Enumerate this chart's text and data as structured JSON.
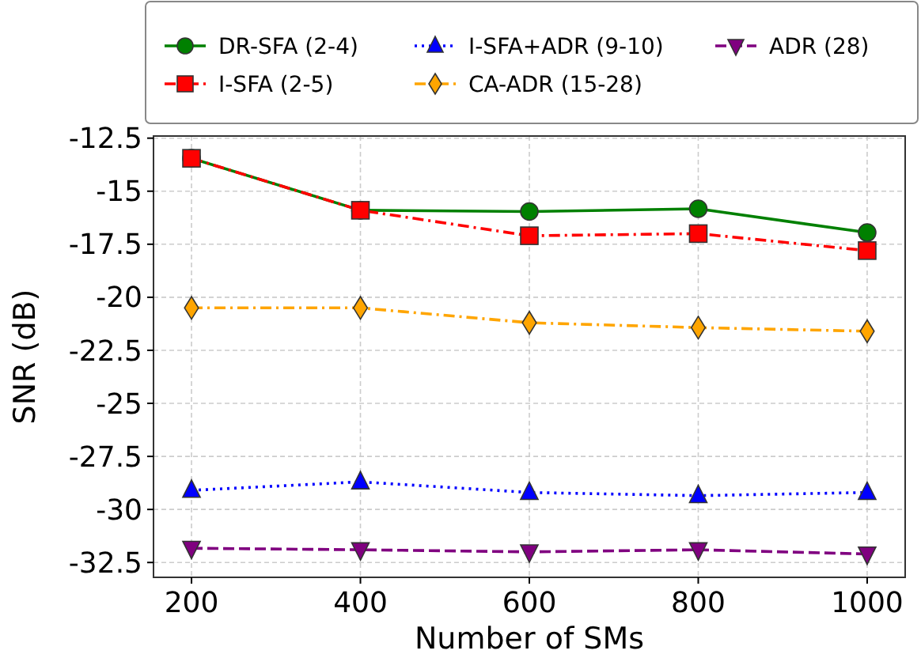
{
  "chart_data": {
    "type": "line",
    "xlabel": "Number of SMs",
    "ylabel": "SNR (dB)",
    "x": [
      200,
      400,
      600,
      800,
      1000
    ],
    "xlim": [
      155,
      1045
    ],
    "xticks": [
      200,
      400,
      600,
      800,
      1000
    ],
    "ylim": [
      -33.2,
      -12.4
    ],
    "yticks": [
      -12.5,
      -15,
      -17.5,
      -20,
      -22.5,
      -25,
      -27.5,
      -30,
      -32.5
    ],
    "grid": true,
    "legend": "top",
    "series": [
      {
        "name": "DR-SFA (2-4)",
        "color": "#008000",
        "marker": "circle",
        "line_style": "solid",
        "values": [
          -13.45,
          -15.9,
          -15.96,
          -15.83,
          -16.95
        ]
      },
      {
        "name": "I-SFA (2-5)",
        "color": "#ff0000",
        "marker": "square",
        "line_style": "dashdot",
        "values": [
          -13.45,
          -15.9,
          -17.1,
          -17.0,
          -17.8
        ]
      },
      {
        "name": "I-SFA+ADR (9-10)",
        "color": "#0000ff",
        "marker": "triangle",
        "line_style": "dotted",
        "values": [
          -29.1,
          -28.7,
          -29.2,
          -29.35,
          -29.2
        ]
      },
      {
        "name": "CA-ADR (15-28)",
        "color": "#ffa500",
        "marker": "diamond",
        "line_style": "dashdot",
        "values": [
          -20.5,
          -20.5,
          -21.2,
          -21.43,
          -21.6
        ]
      },
      {
        "name": "ADR (28)",
        "color": "#800080",
        "marker": "triangle_down",
        "line_style": "dashed",
        "values": [
          -31.83,
          -31.9,
          -32.0,
          -31.9,
          -32.1
        ]
      }
    ]
  }
}
